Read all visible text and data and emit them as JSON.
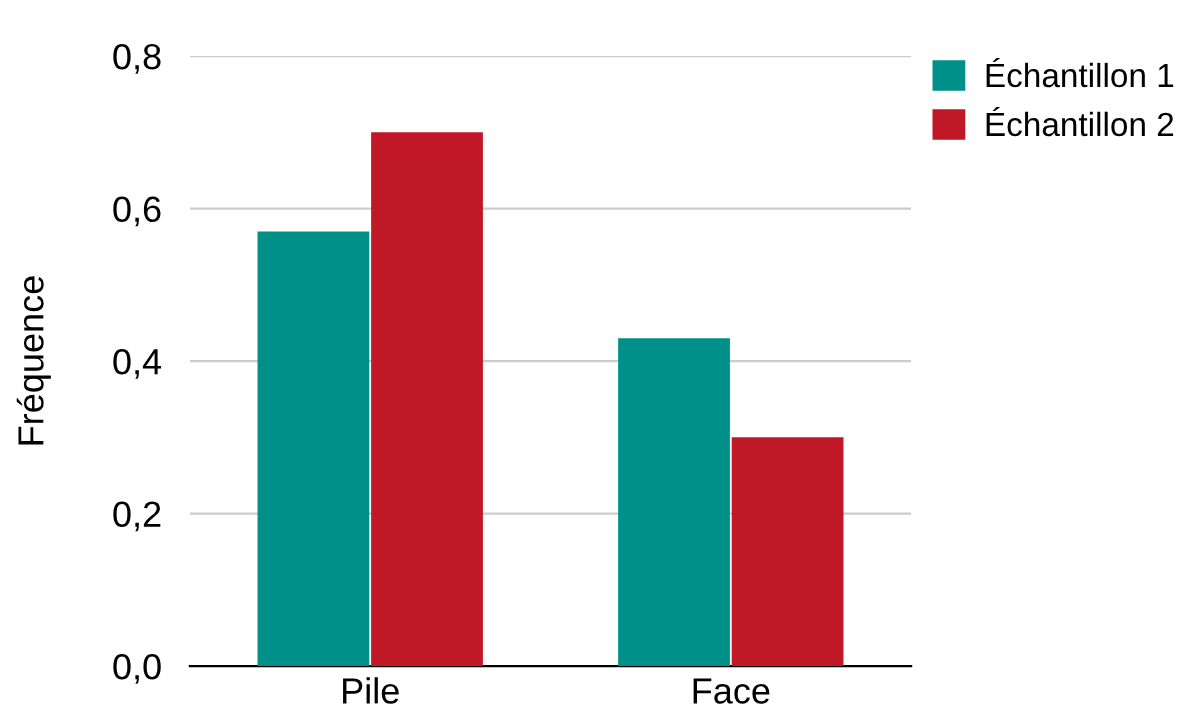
{
  "chart_data": {
    "type": "bar",
    "ylabel": "Fréquence",
    "categories": [
      "Pile",
      "Face"
    ],
    "series": [
      {
        "name": "Échantillon 1",
        "color": "#00908a",
        "values": [
          0.57,
          0.43
        ]
      },
      {
        "name": "Échantillon 2",
        "color": "#c01826",
        "values": [
          0.7,
          0.3
        ]
      }
    ],
    "ylim": [
      0,
      0.8
    ],
    "yticks": [
      {
        "value": 0,
        "label": "0,0"
      },
      {
        "value": 0.2,
        "label": "0,2"
      },
      {
        "value": 0.4,
        "label": "0,4"
      },
      {
        "value": 0.6,
        "label": "0,6"
      },
      {
        "value": 0.8,
        "label": "0,8"
      }
    ],
    "grid": "y",
    "legend": "top right"
  }
}
